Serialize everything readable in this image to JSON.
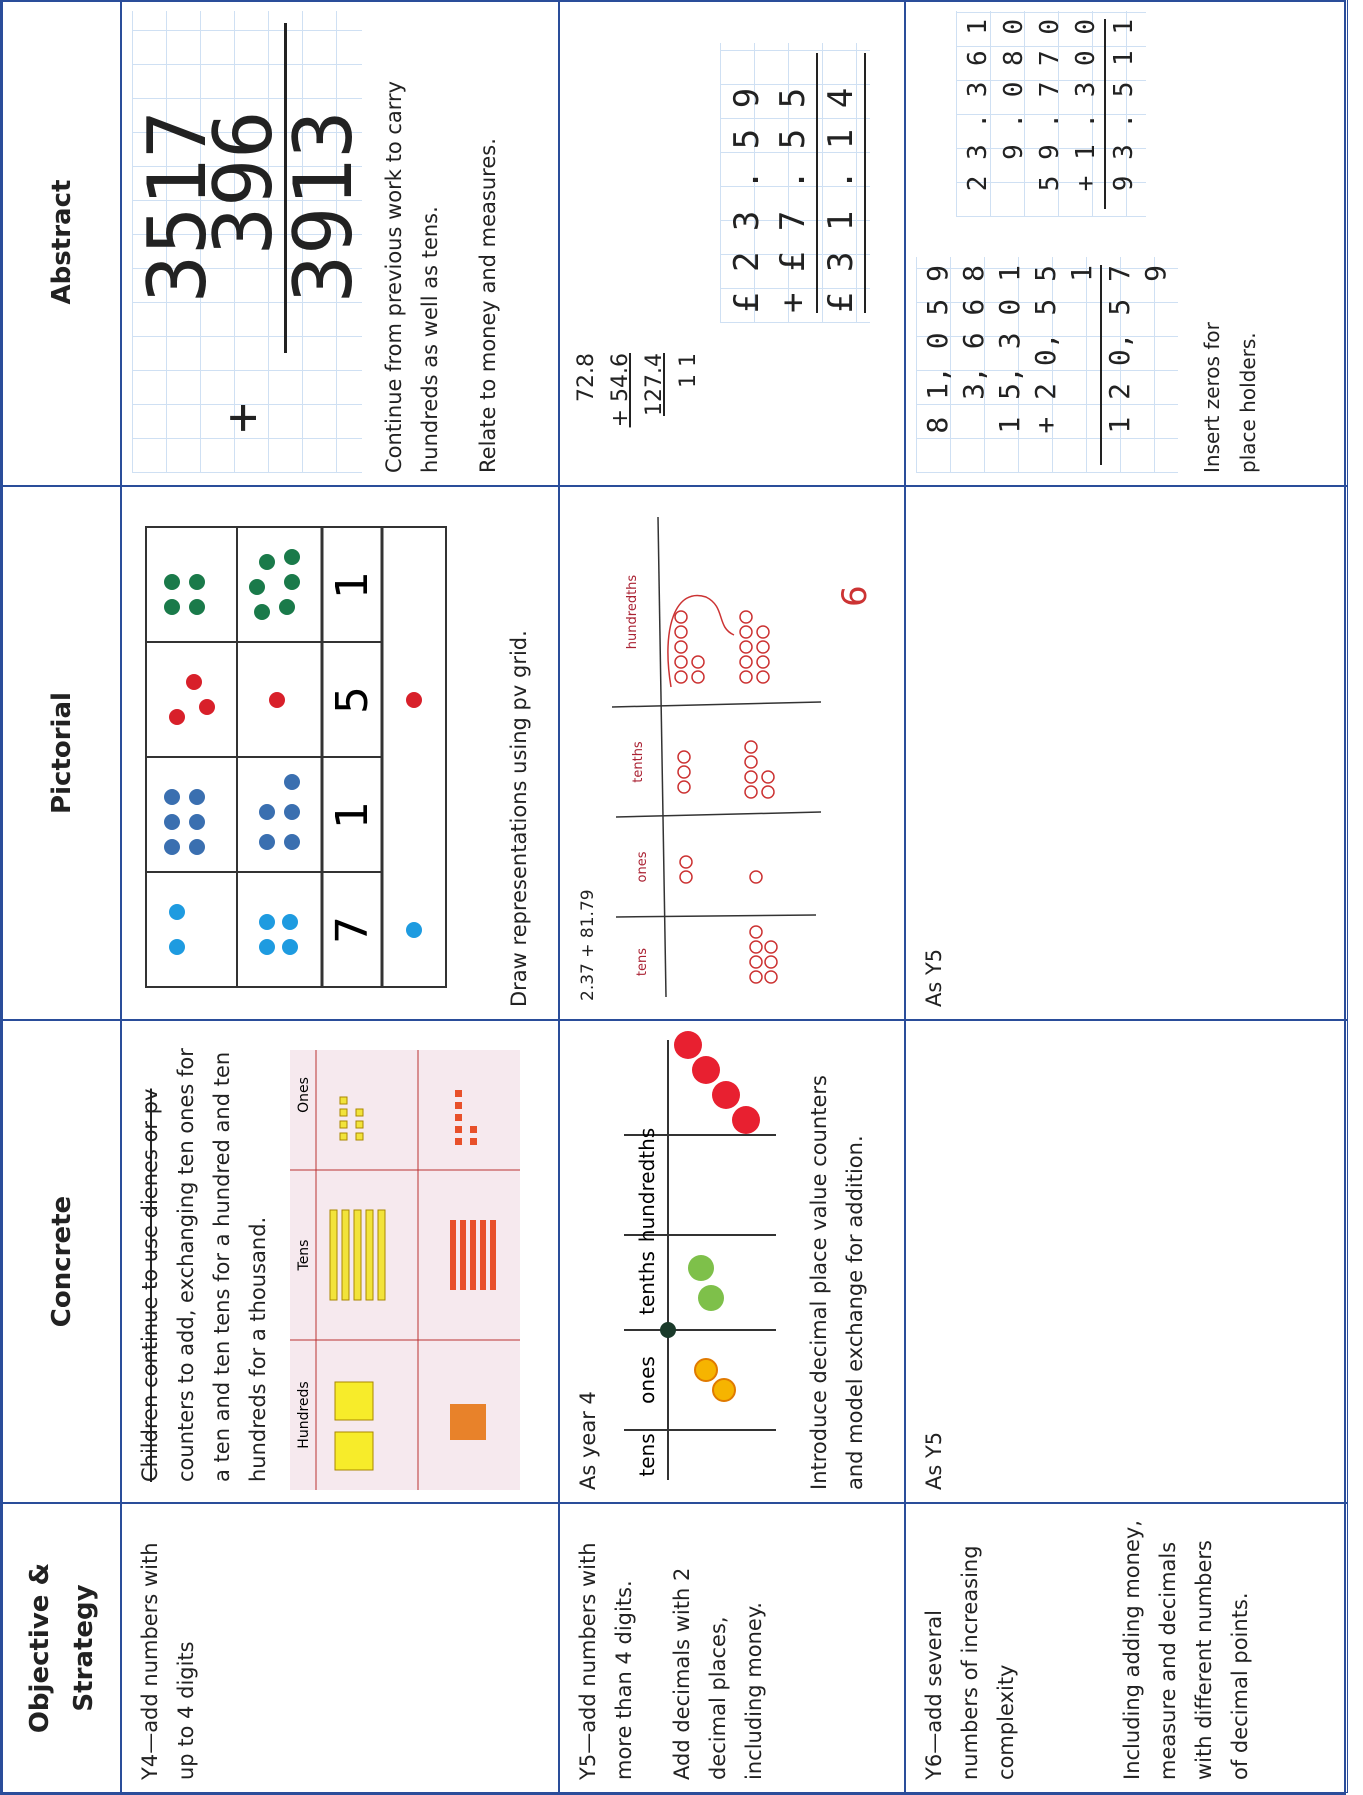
{
  "table": {
    "headers": [
      "Objective & Strategy",
      "Concrete",
      "Pictorial",
      "Abstract"
    ],
    "rows": [
      {
        "objective": [
          "Y4—add numbers with up to 4 digits"
        ],
        "concrete": {
          "struck": "Children continue to use dienes or pv",
          "text": "counters to add, exchanging ten ones for a ten and ten tens for a hundred and ten hundreds for a thousand.",
          "grid_labels": [
            "Hundreds",
            "Tens",
            "Ones"
          ]
        },
        "pictorial": {
          "totals": [
            "7",
            "1",
            "5",
            "1"
          ],
          "caption": "Draw representations using pv grid."
        },
        "abstract": {
          "operator": "+",
          "sum": [
            "3517",
            "396",
            "3913"
          ],
          "notes": [
            "Continue from previous work to carry hundreds as well as tens.",
            "Relate to money and measures."
          ]
        }
      },
      {
        "objective": [
          "Y5—add numbers with more than 4 digits.",
          "Add decimals with 2 decimal places, including money."
        ],
        "concrete": {
          "text": "As year 4",
          "grid_labels": [
            "tens",
            "ones",
            "tenths",
            "hundredths"
          ],
          "caption": "Introduce decimal place value counters and model exchange for addition."
        },
        "pictorial": {
          "sum": "2.37 + 81.79",
          "grid_labels": [
            "tens",
            "ones",
            "tenths",
            "hundredths"
          ],
          "answer": "6"
        },
        "abstract": {
          "sum": [
            "72.8",
            "+ 54.6",
            "127.4",
            "1 1"
          ],
          "money": [
            "£ 2 3 . 5 9",
            "+ £ 7 . 5 5",
            "£ 3 1 . 1 4"
          ]
        }
      },
      {
        "objective": [
          "Y6—add several numbers of increasing complexity",
          "Including adding money, measure and decimals with different numbers of decimal points."
        ],
        "concrete": {
          "text": "As Y5"
        },
        "pictorial": {
          "text": "As Y5"
        },
        "abstract": {
          "sum": [
            "8 1, 0 5 9",
            "3, 6 6 8",
            "1 5, 3 0 1",
            "+ 2 0, 5 5 1",
            "1 2 0, 5 7 9"
          ],
          "decimals": [
            "2 3 . 3 6 1",
            "9 . 0 8 0",
            "5 9 . 7 7 0",
            "+ 1 . 3 0 0",
            "9 3 . 5 1 1"
          ],
          "note": "Insert zeros for place holders."
        }
      }
    ]
  }
}
